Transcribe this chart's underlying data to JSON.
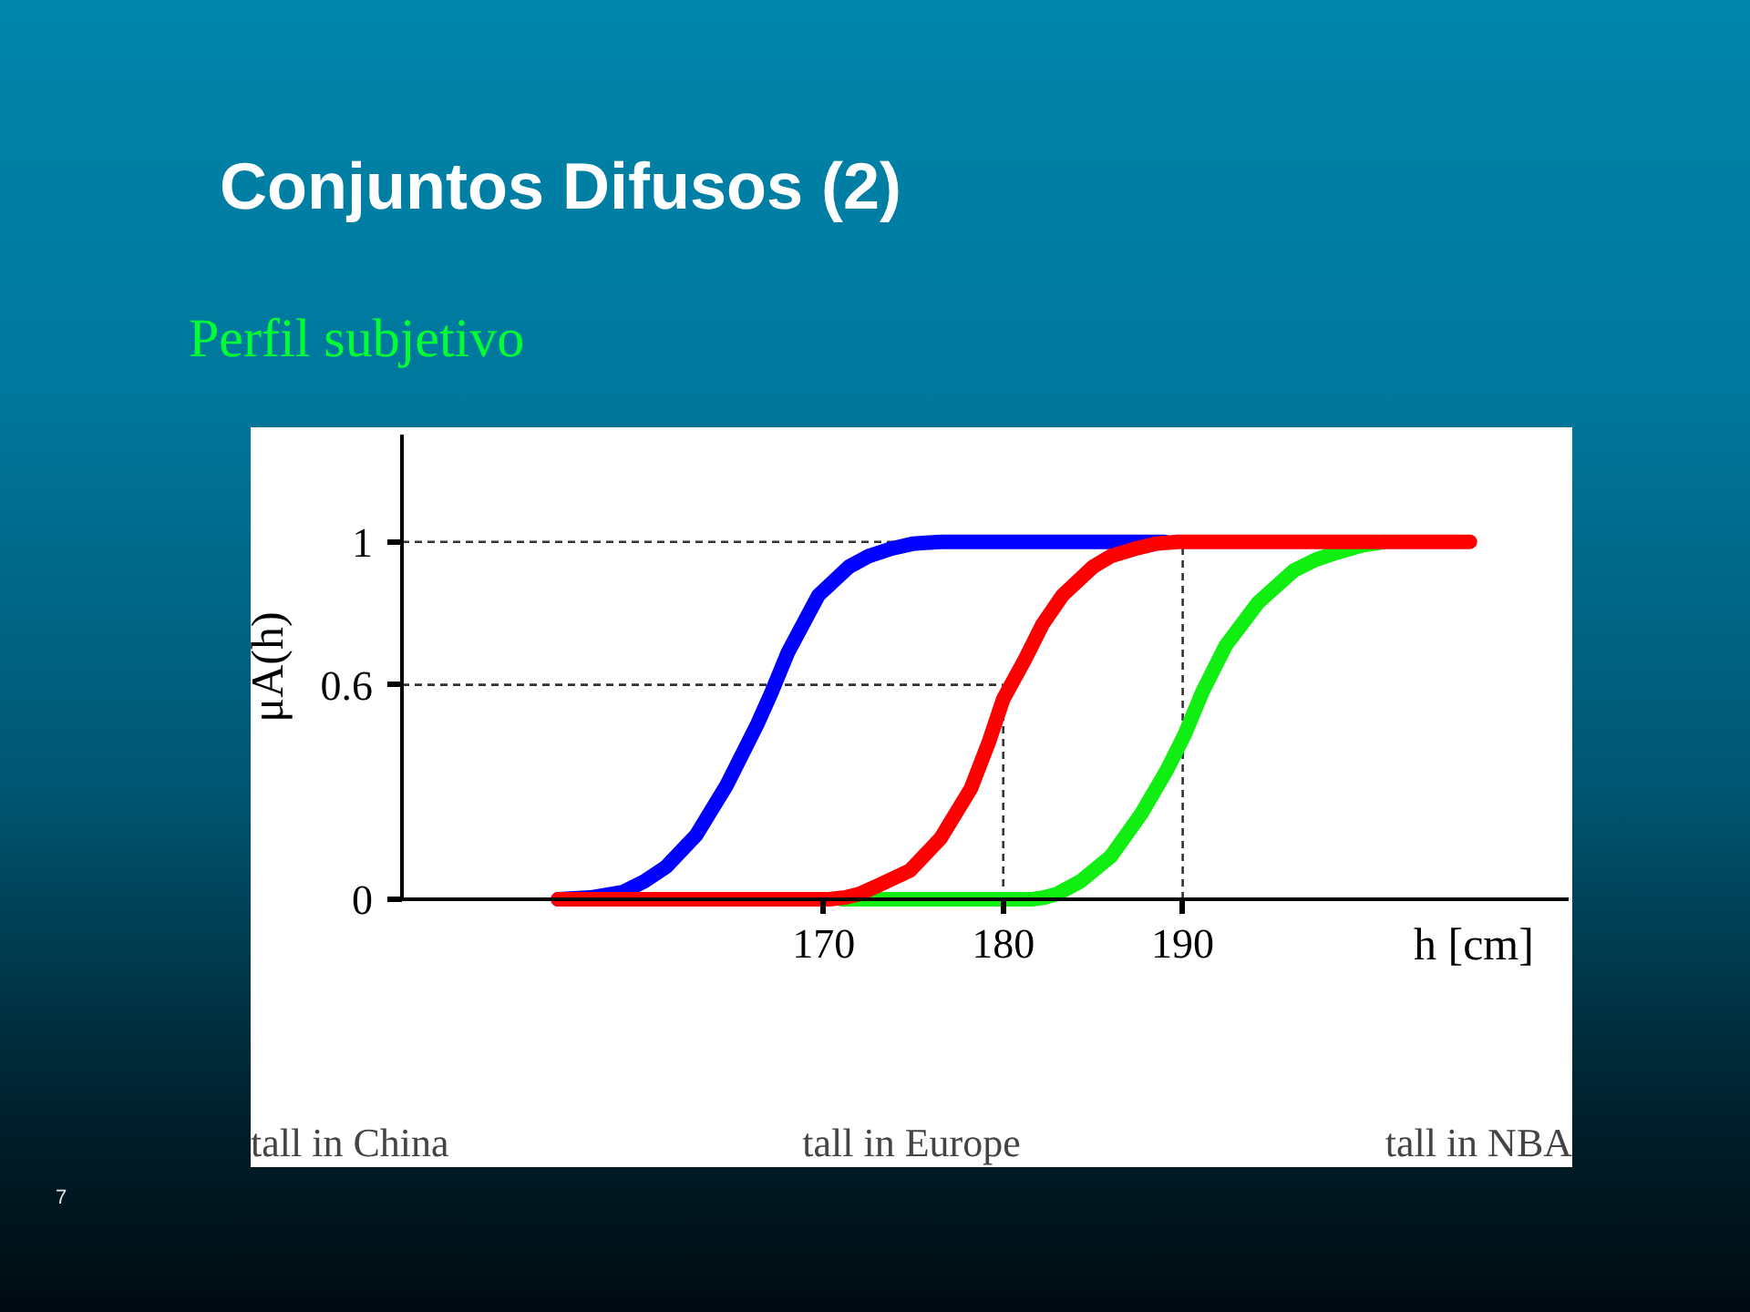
{
  "chart_data": {
    "type": "line",
    "title": "Conjuntos Difusos (2)",
    "subtitle": "Perfil subjetivo",
    "xlabel": "h [cm]",
    "ylabel": "μA(h)",
    "xlim": [
      146.5,
      211.5
    ],
    "ylim": [
      0,
      1.3
    ],
    "xticks": [
      170,
      180,
      190
    ],
    "yticks": [
      0,
      0.6,
      1
    ],
    "series": [
      {
        "color": "#0000ff",
        "x": [
          155.2,
          157,
          158.8,
          160,
          161.2,
          162.9,
          164.6,
          166.3,
          167.1,
          168,
          169.7,
          171.4,
          172.5,
          173.7,
          175,
          176.5,
          189
        ],
        "values": [
          0,
          0.005,
          0.02,
          0.05,
          0.09,
          0.18,
          0.32,
          0.49,
          0.58,
          0.69,
          0.85,
          0.93,
          0.96,
          0.98,
          0.995,
          1,
          1
        ]
      },
      {
        "color": "#11ee11",
        "x": [
          171,
          181.6,
          182.3,
          183,
          184.3,
          186,
          187.7,
          189.1,
          190.1,
          191.1,
          192.4,
          194.2,
          196.2,
          197.4,
          198.6,
          200,
          201.3
        ],
        "values": [
          0,
          0,
          0.005,
          0.015,
          0.05,
          0.12,
          0.24,
          0.36,
          0.46,
          0.58,
          0.71,
          0.83,
          0.92,
          0.95,
          0.97,
          0.99,
          1
        ]
      },
      {
        "color": "#ff0000",
        "x": [
          155.2,
          170.3,
          171.2,
          172,
          173.1,
          174.8,
          176.5,
          178.2,
          179.2,
          180,
          181.2,
          182.2,
          183.3,
          185,
          186,
          187.3,
          188.5,
          189.7,
          206
        ],
        "values": [
          0,
          0,
          0.005,
          0.015,
          0.04,
          0.08,
          0.17,
          0.31,
          0.44,
          0.56,
          0.67,
          0.77,
          0.85,
          0.93,
          0.96,
          0.98,
          0.995,
          1,
          1
        ]
      }
    ],
    "ref_lines": [
      {
        "axis": "y",
        "value": 1,
        "line_style": "dashed"
      },
      {
        "axis": "y",
        "value": 0.6,
        "line_style": "dashed"
      },
      {
        "axis": "x",
        "value": 190,
        "line_style": "dashed"
      },
      {
        "axis": "x",
        "value": 180,
        "line_style": "dashed"
      }
    ],
    "annotations": [
      "tall in China",
      "tall in Europe",
      "tall in NBA",
      "7"
    ]
  }
}
